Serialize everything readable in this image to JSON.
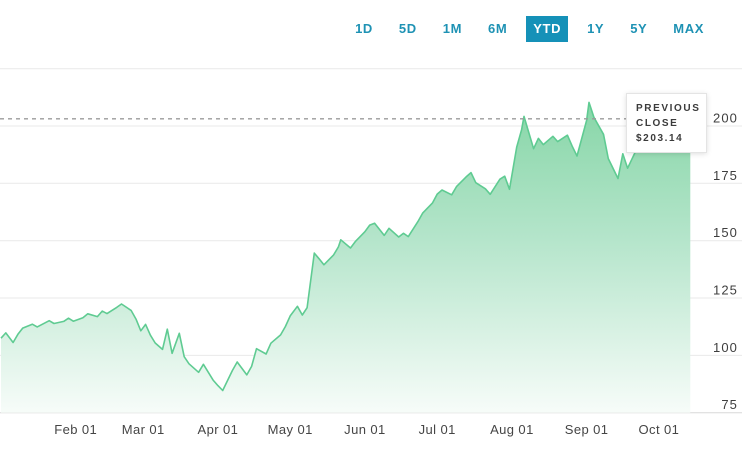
{
  "toolbar": {
    "ranges": [
      {
        "label": "1D",
        "selected": false
      },
      {
        "label": "5D",
        "selected": false
      },
      {
        "label": "1M",
        "selected": false
      },
      {
        "label": "6M",
        "selected": false
      },
      {
        "label": "YTD",
        "selected": true
      },
      {
        "label": "1Y",
        "selected": false
      },
      {
        "label": "5Y",
        "selected": false
      },
      {
        "label": "MAX",
        "selected": false
      }
    ],
    "accent_color": "#1591b8"
  },
  "tooltip": {
    "label": "PREVIOUS CLOSE",
    "value": "$203.14"
  },
  "chart_data": {
    "type": "area",
    "title": "",
    "xlabel": "",
    "ylabel": "",
    "legend": "none",
    "grid": "horizontal",
    "previous_close": 203.14,
    "y_ticks": [
      200,
      175,
      150,
      125,
      100,
      75
    ],
    "ylim": [
      75,
      228
    ],
    "x_ticks": [
      "Feb 01",
      "Mar 01",
      "Apr 01",
      "May 01",
      "Jun 01",
      "Jul 01",
      "Aug 01",
      "Sep 01",
      "Oct 01"
    ],
    "colors": {
      "area_top": "#7bd29e",
      "area_mid": "#b5e5cb",
      "area_bottom": "#f7fcf9",
      "line": "#5fcb92",
      "gridline": "#e9e9e9",
      "axis_line": "#d8d8d8",
      "previous_close_line": "#9b9b9b"
    },
    "series": [
      {
        "name": "price",
        "dates": [
          "Jan 01",
          "Jan 03",
          "Jan 06",
          "Jan 08",
          "Jan 10",
          "Jan 14",
          "Jan 16",
          "Jan 21",
          "Jan 23",
          "Jan 27",
          "Jan 29",
          "Jan 31",
          "Feb 04",
          "Feb 06",
          "Feb 10",
          "Feb 12",
          "Feb 14",
          "Feb 18",
          "Feb 20",
          "Feb 24",
          "Feb 26",
          "Feb 28",
          "Mar 02",
          "Mar 04",
          "Mar 06",
          "Mar 09",
          "Mar 11",
          "Mar 13",
          "Mar 16",
          "Mar 18",
          "Mar 20",
          "Mar 24",
          "Mar 26",
          "Mar 30",
          "Apr 01",
          "Apr 03",
          "Apr 07",
          "Apr 09",
          "Apr 13",
          "Apr 15",
          "Apr 17",
          "Apr 21",
          "Apr 23",
          "Apr 27",
          "Apr 29",
          "May 01",
          "May 04",
          "May 06",
          "May 08",
          "May 11",
          "May 13",
          "May 15",
          "May 19",
          "May 21",
          "May 22",
          "May 26",
          "May 28",
          "Jun 01",
          "Jun 03",
          "Jun 05",
          "Jun 09",
          "Jun 11",
          "Jun 15",
          "Jun 17",
          "Jun 19",
          "Jun 23",
          "Jun 25",
          "Jun 29",
          "Jul 01",
          "Jul 03",
          "Jul 07",
          "Jul 09",
          "Jul 13",
          "Jul 15",
          "Jul 17",
          "Jul 21",
          "Jul 23",
          "Jul 27",
          "Jul 29",
          "Jul 31",
          "Aug 03",
          "Aug 05",
          "Aug 06",
          "Aug 10",
          "Aug 12",
          "Aug 14",
          "Aug 18",
          "Aug 20",
          "Aug 24",
          "Aug 26",
          "Aug 28",
          "Sep 01",
          "Sep 02",
          "Sep 04",
          "Sep 08",
          "Sep 10",
          "Sep 14",
          "Sep 16",
          "Sep 18",
          "Sep 22",
          "Sep 24",
          "Sep 28",
          "Sep 30",
          "Oct 02",
          "Oct 06",
          "Oct 08",
          "Oct 12",
          "Oct 14"
        ],
        "values": [
          107.5,
          109.8,
          105.6,
          109.2,
          111.9,
          113.6,
          112.4,
          115.1,
          113.9,
          114.8,
          116.2,
          114.9,
          116.4,
          118.1,
          116.9,
          119.3,
          118.2,
          120.9,
          122.4,
          119.6,
          115.8,
          110.7,
          113.5,
          108.8,
          105.4,
          102.6,
          111.4,
          100.9,
          109.6,
          99.4,
          96.3,
          92.6,
          96.1,
          89.2,
          86.8,
          84.7,
          93.4,
          97.1,
          91.5,
          95.2,
          102.9,
          100.6,
          105.3,
          108.9,
          112.6,
          117.2,
          121.4,
          117.6,
          120.8,
          144.6,
          142.1,
          139.5,
          143.8,
          147.3,
          150.4,
          146.8,
          149.6,
          153.9,
          156.8,
          157.6,
          152.3,
          155.4,
          151.6,
          153.2,
          151.8,
          158.3,
          162.1,
          166.4,
          170.3,
          172.1,
          170.0,
          173.6,
          177.8,
          179.7,
          175.3,
          172.6,
          170.2,
          176.8,
          178.1,
          172.4,
          190.8,
          198.4,
          204.2,
          190.1,
          194.6,
          191.9,
          195.5,
          193.2,
          196.0,
          191.2,
          186.9,
          202.4,
          210.3,
          203.8,
          196.4,
          185.8,
          177.1,
          187.9,
          181.6,
          190.4,
          193.7,
          195.3,
          192.6,
          194.8,
          196.1,
          192.3,
          194.9,
          194.2
        ]
      }
    ]
  }
}
